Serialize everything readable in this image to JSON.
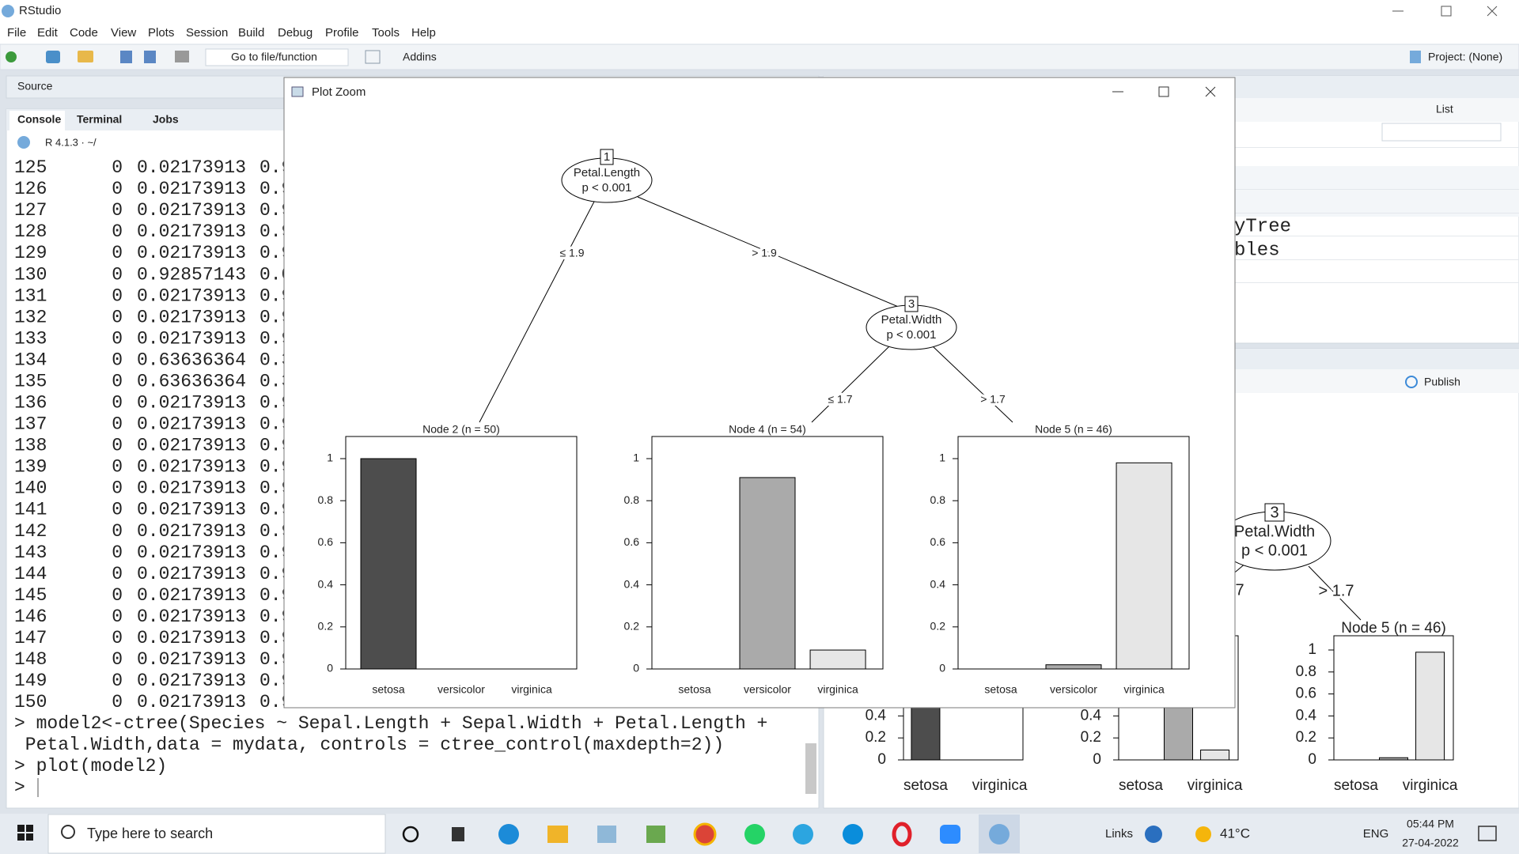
{
  "window": {
    "title": "RStudio",
    "menu": [
      "File",
      "Edit",
      "Code",
      "View",
      "Plots",
      "Session",
      "Build",
      "Debug",
      "Profile",
      "Tools",
      "Help"
    ],
    "toolbar": {
      "goto": "Go to file/function",
      "addins": "Addins",
      "project": "Project: (None)"
    }
  },
  "source_pane": {
    "title": "Source"
  },
  "console": {
    "tabs": [
      "Console",
      "Terminal",
      "Jobs"
    ],
    "header": "R 4.1.3 · ~/",
    "rows": [
      [
        "125",
        "0",
        "0.02173913",
        "0.9"
      ],
      [
        "126",
        "0",
        "0.02173913",
        "0.9"
      ],
      [
        "127",
        "0",
        "0.02173913",
        "0.9"
      ],
      [
        "128",
        "0",
        "0.02173913",
        "0.9"
      ],
      [
        "129",
        "0",
        "0.02173913",
        "0.9"
      ],
      [
        "130",
        "0",
        "0.92857143",
        "0.0"
      ],
      [
        "131",
        "0",
        "0.02173913",
        "0.9"
      ],
      [
        "132",
        "0",
        "0.02173913",
        "0.9"
      ],
      [
        "133",
        "0",
        "0.02173913",
        "0.9"
      ],
      [
        "134",
        "0",
        "0.63636364",
        "0.3"
      ],
      [
        "135",
        "0",
        "0.63636364",
        "0.3"
      ],
      [
        "136",
        "0",
        "0.02173913",
        "0.9"
      ],
      [
        "137",
        "0",
        "0.02173913",
        "0.9"
      ],
      [
        "138",
        "0",
        "0.02173913",
        "0.9"
      ],
      [
        "139",
        "0",
        "0.02173913",
        "0.9"
      ],
      [
        "140",
        "0",
        "0.02173913",
        "0.9"
      ],
      [
        "141",
        "0",
        "0.02173913",
        "0.9"
      ],
      [
        "142",
        "0",
        "0.02173913",
        "0.9"
      ],
      [
        "143",
        "0",
        "0.02173913",
        "0.9"
      ],
      [
        "144",
        "0",
        "0.02173913",
        "0.9"
      ],
      [
        "145",
        "0",
        "0.02173913",
        "0.9"
      ],
      [
        "146",
        "0",
        "0.02173913",
        "0.9"
      ],
      [
        "147",
        "0",
        "0.02173913",
        "0.9"
      ],
      [
        "148",
        "0",
        "0.02173913",
        "0.9"
      ],
      [
        "149",
        "0",
        "0.02173913",
        "0.9"
      ],
      [
        "150",
        "0",
        "0.02173913",
        "0.9"
      ]
    ],
    "commands": [
      "> model2<-ctree(Species ~ Sepal.Length + Sepal.Width + Petal.Length +",
      " Petal.Width,data = mydata, controls = ctree_control(maxdepth=2))",
      "> plot(model2)",
      ">"
    ]
  },
  "environment_pane": {
    "view": "List",
    "entries": [
      "yTree",
      "bles"
    ]
  },
  "viewer_pane": {
    "publish": "Publish"
  },
  "plot_zoom": {
    "title": "Plot Zoom",
    "nodes": [
      {
        "id": "1",
        "label": "Petal.Length",
        "p": "p < 0.001"
      },
      {
        "id": "3",
        "label": "Petal.Width",
        "p": "p < 0.001"
      }
    ],
    "edges": [
      "≤ 1.9",
      "> 1.9",
      "≤ 1.7",
      "> 1.7"
    ]
  },
  "background_plot": {
    "node": {
      "id": "3",
      "label": "Petal.Width",
      "p": "p < 0.001"
    },
    "edges": [
      "7",
      "> 1.7"
    ]
  },
  "chart_data": [
    {
      "type": "bar",
      "title": "Node 2 (n = 50)",
      "categories": [
        "setosa",
        "versicolor",
        "virginica"
      ],
      "values": [
        1,
        0,
        0
      ],
      "colors": [
        "#4d4d4d",
        "#aaaaaa",
        "#e6e6e6"
      ],
      "ylim": [
        0,
        1
      ],
      "yticks": [
        0,
        0.2,
        0.4,
        0.6,
        0.8,
        1
      ]
    },
    {
      "type": "bar",
      "title": "Node 4 (n = 54)",
      "categories": [
        "setosa",
        "versicolor",
        "virginica"
      ],
      "values": [
        0,
        0.91,
        0.09
      ],
      "colors": [
        "#4d4d4d",
        "#aaaaaa",
        "#e6e6e6"
      ],
      "ylim": [
        0,
        1
      ],
      "yticks": [
        0,
        0.2,
        0.4,
        0.6,
        0.8,
        1
      ]
    },
    {
      "type": "bar",
      "title": "Node 5 (n = 46)",
      "categories": [
        "setosa",
        "versicolor",
        "virginica"
      ],
      "values": [
        0,
        0.02,
        0.98
      ],
      "colors": [
        "#4d4d4d",
        "#aaaaaa",
        "#e6e6e6"
      ],
      "ylim": [
        0,
        1
      ],
      "yticks": [
        0,
        0.2,
        0.4,
        0.6,
        0.8,
        1
      ]
    },
    {
      "type": "bar",
      "categories": [
        "setosa",
        null,
        "virginica"
      ],
      "values": [
        1,
        0,
        0
      ],
      "colors": [
        "#4d4d4d",
        "#aaaaaa",
        "#e6e6e6"
      ],
      "ylim": [
        0,
        1
      ],
      "yticks": [
        0,
        0.2,
        0.4
      ]
    },
    {
      "type": "bar",
      "categories": [
        "setosa",
        null,
        "virginica"
      ],
      "values": [
        0,
        0.91,
        0.09
      ],
      "colors": [
        "#4d4d4d",
        "#aaaaaa",
        "#e6e6e6"
      ],
      "ylim": [
        0,
        1
      ],
      "yticks": [
        0,
        0.2,
        0.4
      ]
    },
    {
      "type": "bar",
      "title": "Node 5 (n = 46)",
      "categories": [
        "setosa",
        null,
        "virginica"
      ],
      "values": [
        0,
        0.02,
        0.98
      ],
      "colors": [
        "#4d4d4d",
        "#aaaaaa",
        "#e6e6e6"
      ],
      "ylim": [
        0,
        1
      ],
      "yticks": [
        0,
        0.2,
        0.4,
        0.6,
        0.8,
        1
      ]
    }
  ],
  "taskbar": {
    "search": "Type here to search",
    "links": "Links",
    "weather": "41°C",
    "language": "ENG",
    "time": "05:44 PM",
    "date": "27-04-2022"
  }
}
